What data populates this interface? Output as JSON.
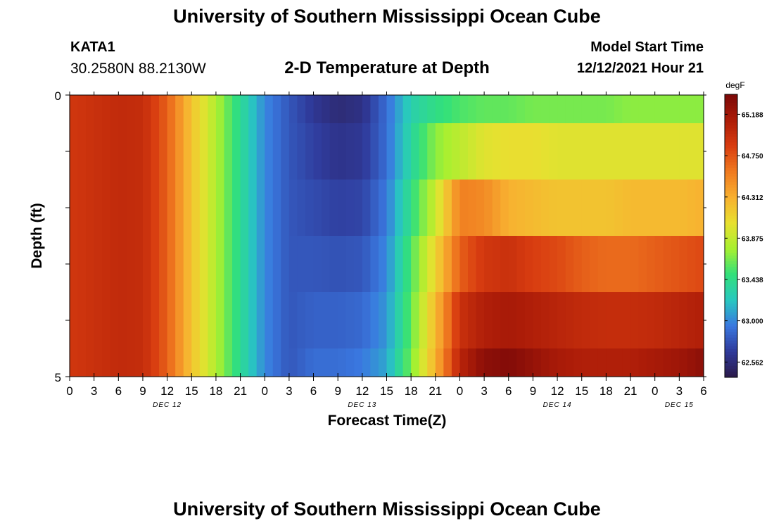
{
  "header": {
    "title": "University of Southern Mississippi Ocean Cube",
    "station": "KATA1",
    "coordinates": "30.2580N  88.2130W",
    "subtitle": "2-D Temperature at Depth",
    "model_start_label": "Model Start Time",
    "model_start_value": "12/12/2021 Hour 21"
  },
  "footer": {
    "title": "University of Southern Mississippi Ocean Cube"
  },
  "chart_data": {
    "type": "heatmap",
    "title": "2-D Temperature at Depth",
    "xlabel": "Forecast Time(Z)",
    "ylabel": "Depth (ft)",
    "x_tick_labels": [
      "0",
      "3",
      "6",
      "9",
      "12",
      "15",
      "18",
      "21",
      "0",
      "3",
      "6",
      "9",
      "12",
      "15",
      "18",
      "21",
      "0",
      "3",
      "6",
      "9",
      "12",
      "15",
      "18",
      "21",
      "0",
      "3",
      "6"
    ],
    "x_range_hours": [
      0,
      78
    ],
    "date_labels": [
      {
        "label": "DEC 12",
        "hour": 12
      },
      {
        "label": "DEC 13",
        "hour": 36
      },
      {
        "label": "DEC 14",
        "hour": 60
      },
      {
        "label": "DEC 15",
        "hour": 75
      }
    ],
    "y_tick_labels": [
      "0",
      "5"
    ],
    "y_range_ft": [
      0,
      5
    ],
    "depth_layers": 5,
    "colorbar": {
      "unit": "degF",
      "labels": [
        "65.188",
        "64.750",
        "64.312",
        "63.875",
        "63.438",
        "63.000",
        "62.562"
      ],
      "range": [
        62.4,
        65.4
      ],
      "colors": [
        "#2c1a4a",
        "#2f3a9a",
        "#3a78e0",
        "#28c8c0",
        "#32e07a",
        "#a8f030",
        "#e8e030",
        "#f8b030",
        "#f07a20",
        "#d83c10",
        "#ac1c08",
        "#7a0808"
      ]
    },
    "time_hours": [
      0,
      3,
      6,
      9,
      12,
      15,
      18,
      21,
      24,
      27,
      30,
      33,
      36,
      39,
      42,
      45,
      48,
      51,
      54,
      57,
      60,
      63,
      66,
      69,
      72,
      75,
      78
    ],
    "series": [
      {
        "name": "0 ft",
        "values": [
          64.9,
          64.95,
          65.0,
          64.98,
          64.7,
          64.2,
          63.8,
          63.4,
          63.0,
          62.8,
          62.65,
          62.55,
          62.6,
          62.9,
          63.3,
          63.45,
          63.55,
          63.6,
          63.6,
          63.65,
          63.65,
          63.65,
          63.65,
          63.7,
          63.7,
          63.7,
          63.7
        ]
      },
      {
        "name": "1 ft",
        "values": [
          64.9,
          64.95,
          65.0,
          64.98,
          64.7,
          64.2,
          63.8,
          63.4,
          63.0,
          62.8,
          62.7,
          62.62,
          62.65,
          62.9,
          63.35,
          63.7,
          63.85,
          64.0,
          64.05,
          64.05,
          64.0,
          64.0,
          64.0,
          64.0,
          64.0,
          64.0,
          64.0
        ]
      },
      {
        "name": "2 ft",
        "values": [
          64.9,
          64.95,
          65.0,
          64.98,
          64.7,
          64.2,
          63.8,
          63.4,
          63.0,
          62.8,
          62.75,
          62.7,
          62.72,
          62.95,
          63.45,
          63.9,
          64.55,
          64.5,
          64.3,
          64.25,
          64.2,
          64.2,
          64.2,
          64.25,
          64.25,
          64.25,
          64.3
        ]
      },
      {
        "name": "3 ft",
        "values": [
          64.9,
          64.95,
          65.0,
          64.98,
          64.7,
          64.2,
          63.8,
          63.4,
          63.0,
          62.8,
          62.8,
          62.78,
          62.8,
          63.0,
          63.55,
          64.1,
          64.7,
          64.9,
          64.95,
          64.85,
          64.8,
          64.7,
          64.65,
          64.65,
          64.7,
          64.75,
          64.8
        ]
      },
      {
        "name": "4 ft",
        "values": [
          64.9,
          64.95,
          65.0,
          64.98,
          64.7,
          64.2,
          63.8,
          63.4,
          63.0,
          62.8,
          62.85,
          62.85,
          62.88,
          63.05,
          63.6,
          64.25,
          64.95,
          65.1,
          65.15,
          65.1,
          65.05,
          65.0,
          64.98,
          64.98,
          65.0,
          65.05,
          65.1
        ]
      },
      {
        "name": "5 ft",
        "values": [
          64.9,
          64.95,
          65.0,
          64.98,
          64.7,
          64.2,
          63.8,
          63.4,
          63.0,
          62.8,
          62.9,
          62.9,
          62.95,
          63.1,
          63.65,
          64.3,
          65.05,
          65.3,
          65.35,
          65.25,
          65.15,
          65.1,
          65.1,
          65.1,
          65.15,
          65.2,
          65.3
        ]
      }
    ]
  }
}
